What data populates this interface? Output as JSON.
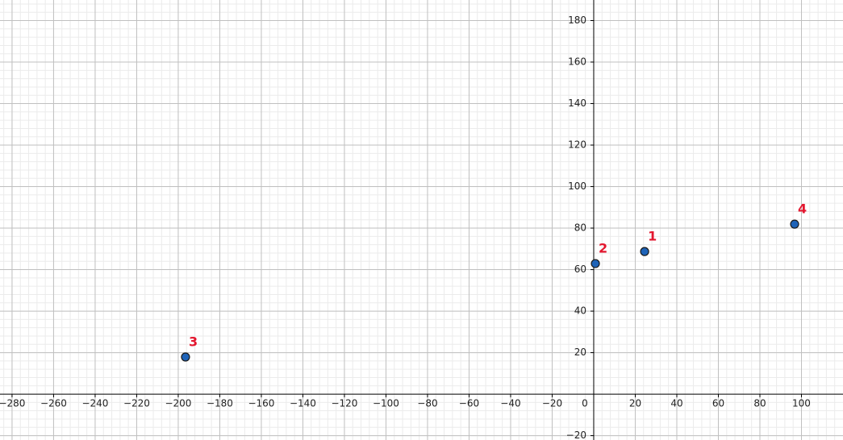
{
  "chart_data": {
    "type": "scatter",
    "x": [
      24.5,
      0.8,
      -196.5,
      96.7
    ],
    "y": [
      68.7,
      62.9,
      17.9,
      81.9
    ],
    "labels": [
      "1",
      "2",
      "3",
      "4"
    ],
    "color": "#1e63b8",
    "label_color": "#e3172f",
    "xlim": [
      -285.8,
      120
    ],
    "ylim": [
      -22.1,
      189.9
    ],
    "xticks": [
      {
        "value": -280,
        "label": "−280"
      },
      {
        "value": -260,
        "label": "−260"
      },
      {
        "value": -240,
        "label": "−240"
      },
      {
        "value": -220,
        "label": "−220"
      },
      {
        "value": -200,
        "label": "−200"
      },
      {
        "value": -180,
        "label": "−180"
      },
      {
        "value": -160,
        "label": "−160"
      },
      {
        "value": -140,
        "label": "−140"
      },
      {
        "value": -120,
        "label": "−120"
      },
      {
        "value": -100,
        "label": "−100"
      },
      {
        "value": -80,
        "label": "−80"
      },
      {
        "value": -60,
        "label": "−60"
      },
      {
        "value": -40,
        "label": "−40"
      },
      {
        "value": -20,
        "label": "−20"
      },
      0,
      20,
      40,
      60,
      80,
      100
    ],
    "yticks": [
      {
        "value": -20,
        "label": "−20"
      },
      20,
      40,
      60,
      80,
      100,
      120,
      140,
      160,
      180
    ],
    "grid": true,
    "minor_grid": true
  }
}
